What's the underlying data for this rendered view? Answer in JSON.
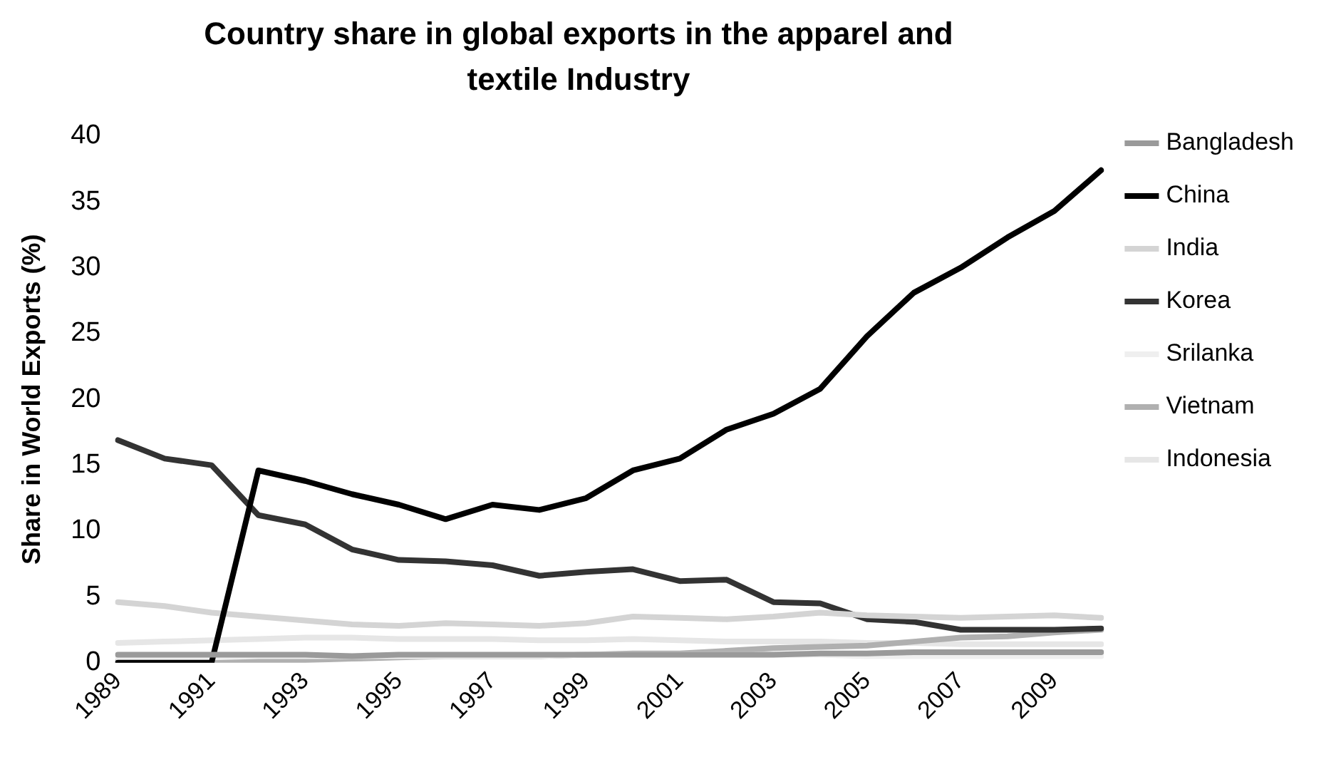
{
  "chart_data": {
    "type": "line",
    "title": "Country share in global exports in the apparel and textile Industry",
    "ylabel": "Share in World Exports (%)",
    "categories": [
      "1989",
      null,
      "1991",
      null,
      "1993",
      null,
      "1995",
      null,
      "1997",
      null,
      "1999",
      null,
      "2001",
      null,
      "2003",
      null,
      "2005",
      null,
      "2007",
      null,
      "2009",
      null
    ],
    "ylim": [
      0,
      40
    ],
    "yticks": [
      0,
      5,
      10,
      15,
      20,
      25,
      30,
      35,
      40
    ],
    "grid": false,
    "legend": "right",
    "marker": "none",
    "series": [
      {
        "name": "Bangladesh",
        "color": "#9a9a9a",
        "values": [
          0.6,
          0.6,
          0.6,
          0.6,
          0.6,
          0.5,
          0.6,
          0.6,
          0.6,
          0.6,
          0.6,
          0.6,
          0.6,
          0.6,
          0.6,
          0.7,
          0.7,
          0.8,
          0.8,
          0.8,
          0.8,
          0.8
        ]
      },
      {
        "name": "China",
        "color": "#000000",
        "values": [
          0,
          0,
          0,
          14.6,
          13.8,
          12.8,
          12,
          10.9,
          12,
          11.6,
          12.5,
          14.6,
          15.5,
          17.7,
          18.9,
          20.8,
          24.8,
          28.1,
          30,
          32.3,
          34.3,
          37.4
        ]
      },
      {
        "name": "India",
        "color": "#d4d4d4",
        "values": [
          4.6,
          4.3,
          3.8,
          3.5,
          3.2,
          2.9,
          2.8,
          3.0,
          2.9,
          2.8,
          3.0,
          3.5,
          3.4,
          3.3,
          3.5,
          3.8,
          3.6,
          3.5,
          3.4,
          3.5,
          3.6,
          3.4
        ]
      },
      {
        "name": "Korea",
        "color": "#333333",
        "values": [
          16.9,
          15.5,
          15,
          11.2,
          10.5,
          8.6,
          7.8,
          7.7,
          7.4,
          6.6,
          6.9,
          7.1,
          6.2,
          6.3,
          4.6,
          4.5,
          3.3,
          3.1,
          2.5,
          2.5,
          2.5,
          2.6
        ]
      },
      {
        "name": "Srilanka",
        "color": "#efefef",
        "values": [
          0.4,
          0.4,
          0.4,
          0.5,
          0.5,
          0.5,
          0.5,
          0.5,
          0.5,
          0.5,
          0.6,
          0.6,
          0.6,
          0.6,
          0.6,
          0.6,
          0.5,
          0.5,
          0.5,
          0.5,
          0.5,
          0.5
        ]
      },
      {
        "name": "Vietnam",
        "color": "#b0b0b0",
        "values": [
          0.1,
          0.1,
          0.1,
          0.2,
          0.2,
          0.3,
          0.4,
          0.5,
          0.5,
          0.5,
          0.6,
          0.7,
          0.7,
          0.9,
          1.1,
          1.2,
          1.3,
          1.6,
          1.9,
          2.0,
          2.3,
          2.5
        ]
      },
      {
        "name": "Indonesia",
        "color": "#e6e6e6",
        "values": [
          1.5,
          1.6,
          1.7,
          1.8,
          1.9,
          1.9,
          1.8,
          1.8,
          1.8,
          1.7,
          1.7,
          1.8,
          1.7,
          1.6,
          1.6,
          1.6,
          1.5,
          1.5,
          1.4,
          1.4,
          1.4,
          1.4
        ]
      }
    ]
  }
}
